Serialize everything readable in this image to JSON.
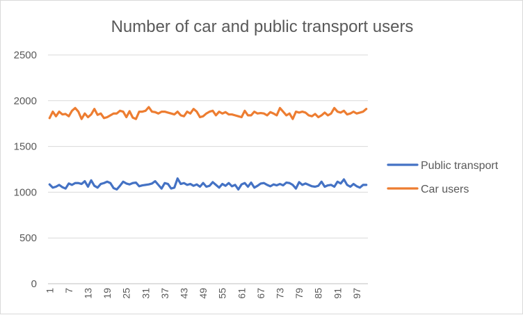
{
  "chart_data": {
    "type": "line",
    "title": "Number of car and public transport users",
    "xlabel": "",
    "ylabel": "",
    "ylim": [
      0,
      2500
    ],
    "yticks": [
      0,
      500,
      1000,
      1500,
      2000,
      2500
    ],
    "x_tick_labels": [
      "1",
      "7",
      "13",
      "19",
      "25",
      "31",
      "37",
      "43",
      "49",
      "55",
      "61",
      "67",
      "73",
      "79",
      "85",
      "91",
      "97"
    ],
    "grid": true,
    "legend_position": "right",
    "series": [
      {
        "name": "Public transport",
        "color": "#4472C4",
        "values": [
          1085,
          1050,
          1060,
          1080,
          1055,
          1040,
          1095,
          1080,
          1100,
          1100,
          1090,
          1120,
          1060,
          1130,
          1070,
          1050,
          1090,
          1100,
          1115,
          1100,
          1045,
          1030,
          1070,
          1115,
          1095,
          1085,
          1100,
          1105,
          1065,
          1075,
          1080,
          1085,
          1095,
          1120,
          1080,
          1040,
          1100,
          1090,
          1040,
          1050,
          1150,
          1090,
          1100,
          1080,
          1090,
          1070,
          1085,
          1060,
          1100,
          1060,
          1070,
          1110,
          1080,
          1050,
          1090,
          1070,
          1100,
          1065,
          1080,
          1030,
          1085,
          1100,
          1060,
          1105,
          1050,
          1070,
          1095,
          1100,
          1080,
          1065,
          1085,
          1075,
          1090,
          1075,
          1105,
          1100,
          1080,
          1040,
          1110,
          1080,
          1095,
          1080,
          1065,
          1060,
          1070,
          1115,
          1060,
          1075,
          1080,
          1060,
          1115,
          1095,
          1140,
          1080,
          1060,
          1090,
          1065,
          1050,
          1080,
          1080
        ]
      },
      {
        "name": "Car users",
        "color": "#ED7D31",
        "values": [
          1810,
          1880,
          1830,
          1880,
          1850,
          1855,
          1830,
          1890,
          1920,
          1880,
          1800,
          1860,
          1820,
          1850,
          1910,
          1845,
          1860,
          1810,
          1820,
          1840,
          1860,
          1860,
          1890,
          1880,
          1820,
          1885,
          1815,
          1800,
          1880,
          1880,
          1890,
          1930,
          1880,
          1875,
          1860,
          1880,
          1880,
          1870,
          1860,
          1850,
          1880,
          1840,
          1830,
          1880,
          1860,
          1910,
          1880,
          1820,
          1830,
          1860,
          1880,
          1890,
          1840,
          1880,
          1860,
          1875,
          1850,
          1850,
          1840,
          1830,
          1820,
          1890,
          1840,
          1840,
          1880,
          1860,
          1865,
          1860,
          1840,
          1875,
          1860,
          1840,
          1920,
          1880,
          1840,
          1860,
          1800,
          1880,
          1870,
          1880,
          1870,
          1840,
          1830,
          1855,
          1820,
          1840,
          1870,
          1840,
          1860,
          1920,
          1880,
          1870,
          1890,
          1850,
          1860,
          1880,
          1860,
          1870,
          1880,
          1910
        ]
      }
    ]
  }
}
